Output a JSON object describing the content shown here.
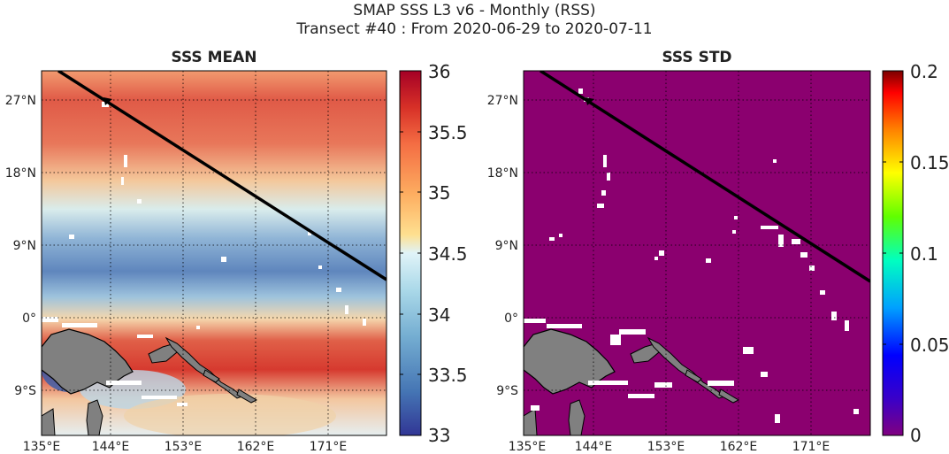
{
  "figure": {
    "title_line1": "SMAP SSS L3 v6 - Monthly (RSS)",
    "title_line2": "Transect #40 : From 2020-06-29 to 2020-07-11"
  },
  "panels": [
    {
      "title": "SSS MEAN",
      "colorbar": {
        "min": 33,
        "max": 36,
        "ticks": [
          "33",
          "33.5",
          "34",
          "34.5",
          "35",
          "35.5",
          "36"
        ],
        "colormap": "RdYlBu_r"
      }
    },
    {
      "title": "SSS STD",
      "colorbar": {
        "min": 0,
        "max": 0.2,
        "ticks": [
          "0",
          "0.05",
          "0.1",
          "0.15",
          "0.2"
        ],
        "colormap": "jet"
      }
    }
  ],
  "axes": {
    "lon_ticks": [
      "135°E",
      "144°E",
      "153°E",
      "162°E",
      "171°E"
    ],
    "lat_ticks": [
      "27°N",
      "18°N",
      "9°N",
      "0°",
      "9°S"
    ]
  },
  "transect": {
    "start": [
      137.5,
      30.5
    ],
    "end": [
      179.5,
      4.5
    ]
  },
  "colors": {
    "land": "#808080",
    "transect": "#000000",
    "std_field": "#8b006f",
    "no_data": "#ffffff"
  }
}
